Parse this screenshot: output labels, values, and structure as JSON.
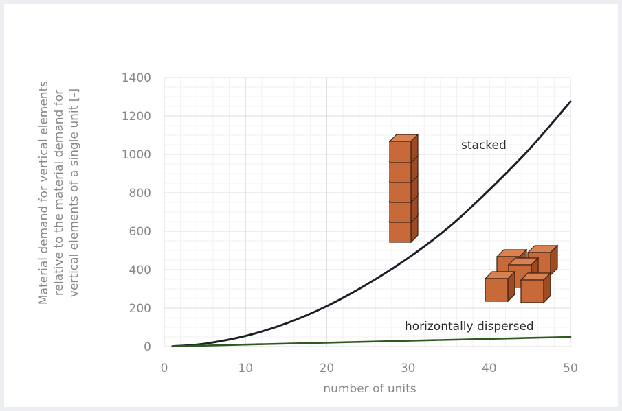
{
  "chart_data": {
    "type": "line",
    "title": "",
    "xlabel": "number of units",
    "ylabel": [
      "Material demand for vertical elements",
      "relative to the material demand for",
      "vertical elements of a single unit [-]"
    ],
    "xlim": [
      0,
      50
    ],
    "ylim": [
      0,
      1400
    ],
    "xticks": [
      0,
      10,
      20,
      30,
      40,
      50
    ],
    "yticks": [
      0,
      200,
      400,
      600,
      800,
      1000,
      1200,
      1400
    ],
    "grid": true,
    "series": [
      {
        "name": "stacked",
        "color": "#1c1f2a",
        "x": [
          1,
          5,
          10,
          15,
          20,
          25,
          30,
          35,
          40,
          45,
          50
        ],
        "y": [
          1,
          15,
          55,
          120,
          210,
          325,
          460,
          620,
          815,
          1030,
          1275
        ]
      },
      {
        "name": "horizontally dispersed",
        "color": "#2f5a1f",
        "x": [
          1,
          10,
          20,
          30,
          40,
          50
        ],
        "y": [
          1,
          10,
          20,
          30,
          40,
          50
        ]
      }
    ],
    "illustrations": [
      "stacked-cubes-icon",
      "dispersed-cubes-icon"
    ],
    "cube_color": "#c8693a"
  }
}
